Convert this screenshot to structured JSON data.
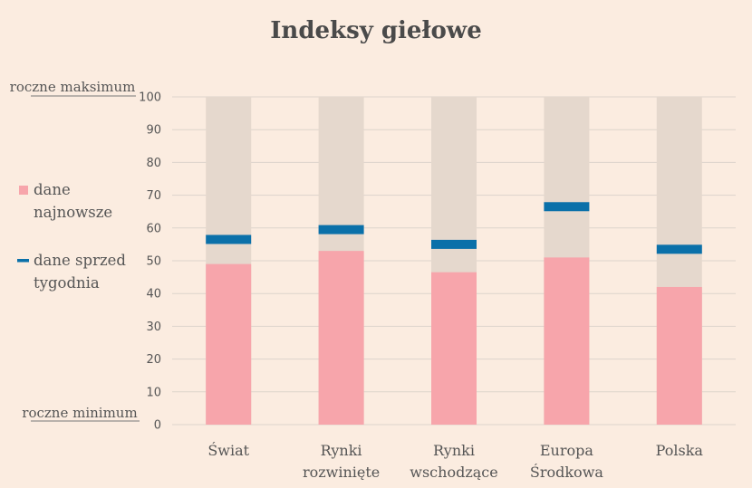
{
  "chart_data": {
    "type": "bar",
    "title": "Indeksy giełowe",
    "categories": [
      [
        "Świat"
      ],
      [
        "Rynki",
        "rozwinięte"
      ],
      [
        "Rynki",
        "wschodzące"
      ],
      [
        "Europa",
        "Środkowa"
      ],
      [
        "Polska"
      ]
    ],
    "series": [
      {
        "name": "dane najnowsze",
        "values": [
          49,
          53,
          46.5,
          51,
          42
        ]
      },
      {
        "name": "dane sprzed tygodnia",
        "values": [
          56.5,
          59.5,
          55,
          66.5,
          53.5
        ]
      }
    ],
    "range_max": 100,
    "ylim": [
      0,
      100
    ],
    "yticks": [
      0,
      10,
      20,
      30,
      40,
      50,
      60,
      70,
      80,
      90,
      100
    ],
    "top_label": "roczne maksimum",
    "bottom_label": "roczne minimum",
    "legend": [
      [
        "dane",
        "najnowsze"
      ],
      [
        "dane sprzed",
        "tygodnia"
      ]
    ],
    "grid": true,
    "colors": {
      "background": "#fbece0",
      "range": "#e5d8cd",
      "latest": "#f7a5ab",
      "week_ago": "#0a70a9",
      "grid": "#ddd3cb",
      "text": "#555555"
    }
  }
}
